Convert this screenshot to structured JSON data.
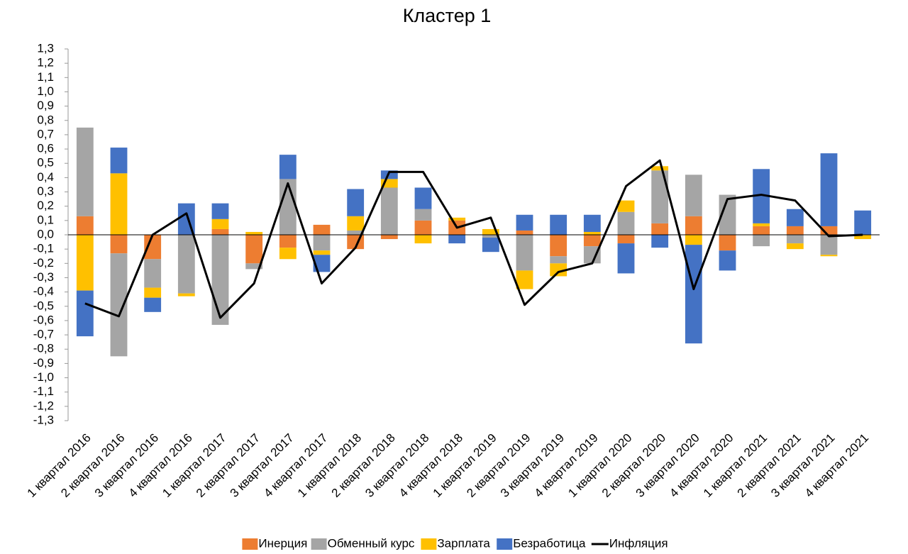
{
  "chart_data": {
    "type": "bar",
    "title": "Кластер 1",
    "categories": [
      "1 квартал 2016",
      "2 квартал 2016",
      "3 квартал 2016",
      "4 квартал 2016",
      "1 квартал 2017",
      "2 квартал 2017",
      "3 квартал 2017",
      "4 квартал 2017",
      "1 квартал 2018",
      "2 квартал 2018",
      "3 квартал 2018",
      "4 квартал 2018",
      "1 квартал 2019",
      "2 квартал 2019",
      "3 квартал 2019",
      "4 квартал 2019",
      "1 квартал 2020",
      "2 квартал 2020",
      "3 квартал 2020",
      "4 квартал 2020",
      "1 квартал 2021",
      "2 квартал 2021",
      "3 квартал 2021",
      "4 квартал 2021"
    ],
    "series": [
      {
        "name": "Инерция",
        "color": "#ed7d31",
        "values": [
          0.13,
          -0.13,
          -0.17,
          0,
          0.04,
          -0.2,
          -0.09,
          0.07,
          -0.1,
          -0.03,
          0.1,
          0.1,
          0,
          0.03,
          -0.15,
          -0.08,
          -0.06,
          0.08,
          0.13,
          -0.11,
          0.06,
          0.06,
          0.06,
          0
        ]
      },
      {
        "name": "Обменный курс",
        "color": "#a5a5a5",
        "values": [
          0.62,
          -0.72,
          -0.2,
          -0.41,
          -0.63,
          -0.04,
          0.39,
          -0.11,
          0.03,
          0.33,
          0.08,
          0,
          -0.02,
          -0.25,
          -0.05,
          -0.12,
          0.16,
          0.37,
          0.29,
          0.28,
          -0.08,
          -0.06,
          -0.14,
          0
        ]
      },
      {
        "name": "Зарплата",
        "color": "#ffc000",
        "values": [
          -0.39,
          0.43,
          -0.07,
          -0.02,
          0.07,
          0.02,
          -0.08,
          -0.03,
          0.1,
          0.06,
          -0.06,
          0.02,
          0.04,
          -0.13,
          -0.09,
          0.02,
          0.08,
          0.03,
          -0.07,
          0,
          0.02,
          -0.04,
          -0.01,
          -0.03
        ]
      },
      {
        "name": "Безработица",
        "color": "#4472c4",
        "values": [
          -0.32,
          0.18,
          -0.1,
          0.22,
          0.11,
          0,
          0.17,
          -0.12,
          0.19,
          0.06,
          0.15,
          -0.06,
          -0.1,
          0.11,
          0.14,
          0.12,
          -0.21,
          -0.09,
          -0.69,
          -0.14,
          0.38,
          0.12,
          0.51,
          0.17
        ]
      },
      {
        "name": "Инфляция",
        "color": "#000000",
        "type": "line",
        "values": [
          -0.48,
          -0.57,
          0,
          0.15,
          -0.58,
          -0.34,
          0.36,
          -0.34,
          -0.09,
          0.44,
          0.44,
          0.05,
          0.12,
          -0.49,
          -0.26,
          -0.2,
          0.34,
          0.52,
          -0.38,
          0.25,
          0.28,
          0.24,
          -0.01,
          0
        ]
      }
    ],
    "ylim": [
      -1.3,
      1.3
    ],
    "yticks": [
      {
        "value": -1.3,
        "label": "-1,3"
      },
      {
        "value": -1.2,
        "label": "-1,2"
      },
      {
        "value": -1.1,
        "label": "-1,1"
      },
      {
        "value": -1,
        "label": "-1,0"
      },
      {
        "value": -0.9,
        "label": "-0,9"
      },
      {
        "value": -0.8,
        "label": "-0,8"
      },
      {
        "value": -0.7,
        "label": "-0,7"
      },
      {
        "value": -0.6,
        "label": "-0,6"
      },
      {
        "value": -0.5,
        "label": "-0,5"
      },
      {
        "value": -0.4,
        "label": "-0,4"
      },
      {
        "value": -0.3,
        "label": "-0,3"
      },
      {
        "value": -0.2,
        "label": "-0,2"
      },
      {
        "value": -0.1,
        "label": "-0,1"
      },
      {
        "value": 0,
        "label": "0,0"
      },
      {
        "value": 0.1,
        "label": "0,1"
      },
      {
        "value": 0.2,
        "label": "0,2"
      },
      {
        "value": 0.3,
        "label": "0,3"
      },
      {
        "value": 0.4,
        "label": "0,4"
      },
      {
        "value": 0.5,
        "label": "0,5"
      },
      {
        "value": 0.6,
        "label": "0,6"
      },
      {
        "value": 0.7,
        "label": "0,7"
      },
      {
        "value": 0.8,
        "label": "0,8"
      },
      {
        "value": 0.9,
        "label": "0,9"
      },
      {
        "value": 1,
        "label": "1,0"
      },
      {
        "value": 1.1,
        "label": "1,1"
      },
      {
        "value": 1.2,
        "label": "1,2"
      },
      {
        "value": 1.3,
        "label": "1,3"
      }
    ],
    "grid": false,
    "legend": "bottom"
  }
}
